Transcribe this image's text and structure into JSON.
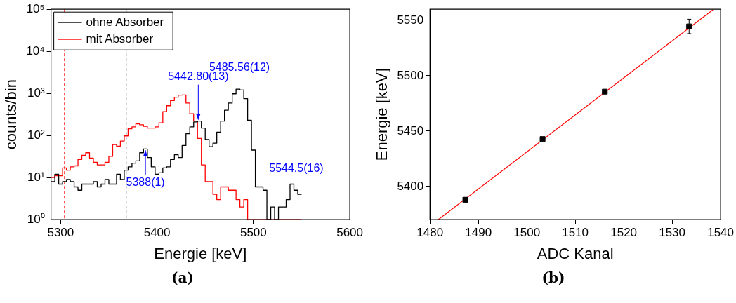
{
  "chart_data": [
    {
      "type": "histogram",
      "xlabel": "Energie [keV]",
      "ylabel": "counts/bin",
      "bins": [
        5290,
        5294,
        5298,
        5302,
        5306,
        5310,
        5314,
        5318,
        5322,
        5326,
        5330,
        5334,
        5338,
        5342,
        5346,
        5350,
        5354,
        5358,
        5362,
        5366,
        5370,
        5374,
        5378,
        5382,
        5386,
        5390,
        5394,
        5398,
        5402,
        5406,
        5410,
        5414,
        5418,
        5422,
        5426,
        5430,
        5434,
        5438,
        5442,
        5446,
        5450,
        5454,
        5458,
        5462,
        5466,
        5470,
        5474,
        5478,
        5482,
        5486,
        5490,
        5494,
        5498,
        5502,
        5506,
        5510,
        5514,
        5518,
        5522,
        5526,
        5530,
        5534,
        5538,
        5542,
        5546,
        5550
      ],
      "series": [
        {
          "name": "ohne Absorber",
          "color": "#000000",
          "values": [
            8,
            12,
            7,
            8,
            9,
            8,
            6,
            5,
            7,
            7,
            7,
            8,
            6,
            7,
            9,
            7,
            7,
            12,
            9,
            15,
            18,
            22,
            25,
            39,
            48,
            30,
            18,
            12,
            13,
            17,
            18,
            27,
            35,
            30,
            58,
            110,
            160,
            210,
            220,
            150,
            80,
            54,
            66,
            120,
            220,
            400,
            590,
            980,
            1260,
            1200,
            750,
            230,
            45,
            6,
            6,
            5,
            1,
            2,
            1,
            2,
            2,
            3,
            7,
            5,
            4
          ]
        },
        {
          "name": "mit Absorber",
          "color": "#ff0000",
          "values": [
            10,
            11,
            11,
            17,
            15,
            18,
            19,
            27,
            34,
            39,
            29,
            23,
            20,
            20,
            23,
            32,
            61,
            56,
            74,
            98,
            145,
            160,
            190,
            180,
            165,
            150,
            150,
            160,
            200,
            370,
            510,
            680,
            810,
            910,
            920,
            590,
            330,
            220,
            85,
            20,
            8,
            8,
            4,
            3,
            6,
            6,
            5,
            5,
            3,
            2,
            3,
            1,
            1,
            1,
            1,
            1,
            1,
            1,
            1,
            1,
            1,
            1,
            1,
            1,
            1
          ]
        }
      ],
      "log": "y",
      "xlim": [
        5290,
        5600
      ],
      "xticks": [
        5300,
        5400,
        5500,
        5600
      ],
      "ylim": [
        1,
        100000
      ],
      "yticks": [
        {
          "value": 1,
          "label": "10⁰"
        },
        {
          "value": 10,
          "label": "10¹"
        },
        {
          "value": 100,
          "label": "10²"
        },
        {
          "value": 1000,
          "label": "10³"
        },
        {
          "value": 10000,
          "label": "10⁴"
        },
        {
          "value": 100000,
          "label": "10⁵"
        }
      ],
      "ref_lines": [
        {
          "axis": "x",
          "value": 5304,
          "color": "#ff0000",
          "line_style": "dashed"
        },
        {
          "axis": "x",
          "value": 5368,
          "color": "#000000",
          "line_style": "dashed"
        }
      ],
      "legend": "top left",
      "grid": false,
      "annotations": [
        {
          "text": "5442.80(13)",
          "x": 5442.8,
          "y": 220
        },
        {
          "text": "5485.56(12)",
          "x": 5485.56,
          "y": 1300
        },
        {
          "text": "5388(1)",
          "x": 5388,
          "y": 48
        },
        {
          "text": "5544.5(16)",
          "x": 5544.5,
          "y": 7
        },
        "(a)"
      ]
    },
    {
      "type": "scatter",
      "xlabel": "ADC Kanal",
      "ylabel": "Energie [keV]",
      "series": [
        {
          "type": "scatter",
          "color": "#000000",
          "marker": "square",
          "x": [
            1487.3,
            1503.25,
            1516.1,
            1533.5
          ],
          "values": [
            5388,
            5442.8,
            5485.6,
            5544.5
          ],
          "errors": [
            2,
            null,
            null,
            6.5
          ]
        },
        {
          "type": "line",
          "color": "#ff0000",
          "x": [
            1481.7,
            1538.4
          ],
          "values": [
            5370,
            5559.5
          ]
        }
      ],
      "xlim": [
        1480,
        1540
      ],
      "xticks": [
        1480,
        1490,
        1500,
        1510,
        1520,
        1530,
        1540
      ],
      "ylim": [
        5370,
        5560
      ],
      "yticks": [
        5400,
        5450,
        5500,
        5550
      ],
      "legend": false,
      "grid": false,
      "annotations": [
        "(b)"
      ]
    }
  ]
}
